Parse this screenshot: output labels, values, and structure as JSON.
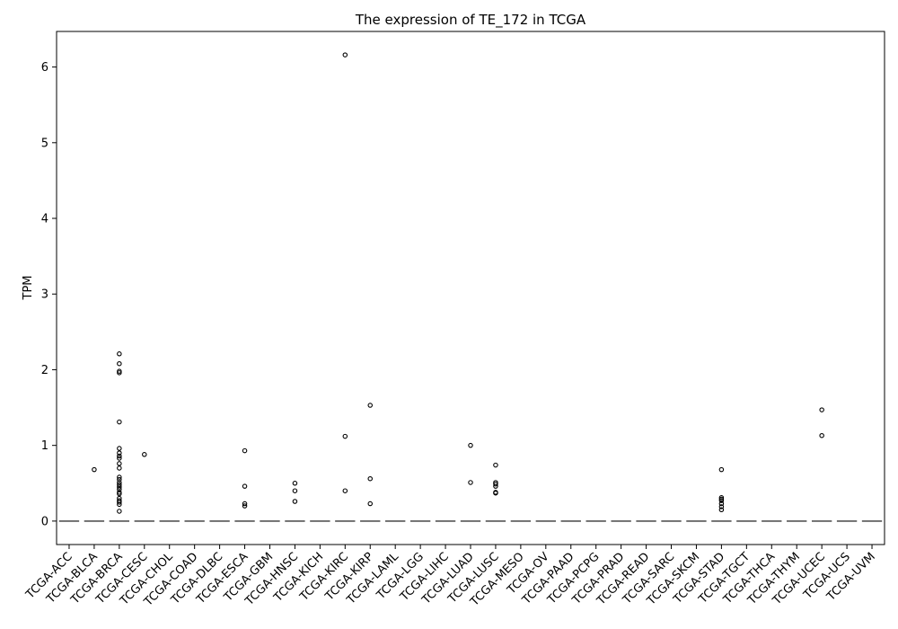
{
  "chart_data": {
    "type": "box",
    "title": "The expression of TE_172 in TCGA",
    "xlabel": "",
    "ylabel": "TPM",
    "ylim": [
      -0.31,
      6.47
    ],
    "yticks": [
      0,
      1,
      2,
      3,
      4,
      5,
      6
    ],
    "grid": false,
    "categories": [
      "TCGA-ACC",
      "TCGA-BLCA",
      "TCGA-BRCA",
      "TCGA-CESC",
      "TCGA-CHOL",
      "TCGA-COAD",
      "TCGA-DLBC",
      "TCGA-ESCA",
      "TCGA-GBM",
      "TCGA-HNSC",
      "TCGA-KICH",
      "TCGA-KIRC",
      "TCGA-KIRP",
      "TCGA-LAML",
      "TCGA-LGG",
      "TCGA-LIHC",
      "TCGA-LUAD",
      "TCGA-LUSC",
      "TCGA-MESO",
      "TCGA-OV",
      "TCGA-PAAD",
      "TCGA-PCPG",
      "TCGA-PRAD",
      "TCGA-READ",
      "TCGA-SARC",
      "TCGA-SKCM",
      "TCGA-STAD",
      "TCGA-TGCT",
      "TCGA-THCA",
      "TCGA-THYM",
      "TCGA-UCEC",
      "TCGA-UCS",
      "TCGA-UVM"
    ],
    "median": [
      0,
      0,
      0,
      0,
      0,
      0,
      0,
      0,
      0,
      0,
      0,
      0,
      0,
      0,
      0,
      0,
      0,
      0,
      0,
      0,
      0,
      0,
      0,
      0,
      0,
      0,
      0,
      0,
      0,
      0,
      0,
      0,
      0
    ],
    "outliers": [
      [],
      [
        0.68
      ],
      [
        2.21,
        2.08,
        1.98,
        1.96,
        1.31,
        0.96,
        0.9,
        0.86,
        0.83,
        0.76,
        0.7,
        0.58,
        0.55,
        0.51,
        0.48,
        0.45,
        0.42,
        0.38,
        0.36,
        0.3,
        0.27,
        0.25,
        0.22,
        0.13
      ],
      [
        0.88
      ],
      [],
      [],
      [],
      [
        0.93,
        0.46,
        0.23,
        0.2
      ],
      [],
      [
        0.5,
        0.4,
        0.26
      ],
      [],
      [
        6.16,
        1.12,
        0.4
      ],
      [
        1.53,
        0.56,
        0.23
      ],
      [],
      [],
      [],
      [
        1.0,
        0.51
      ],
      [
        0.74,
        0.51,
        0.49,
        0.46,
        0.38,
        0.37
      ],
      [],
      [],
      [],
      [],
      [],
      [],
      [],
      [],
      [
        0.68,
        0.31,
        0.29,
        0.27,
        0.23,
        0.19,
        0.15
      ],
      [],
      [],
      [],
      [
        1.47,
        1.13
      ],
      [],
      []
    ]
  }
}
